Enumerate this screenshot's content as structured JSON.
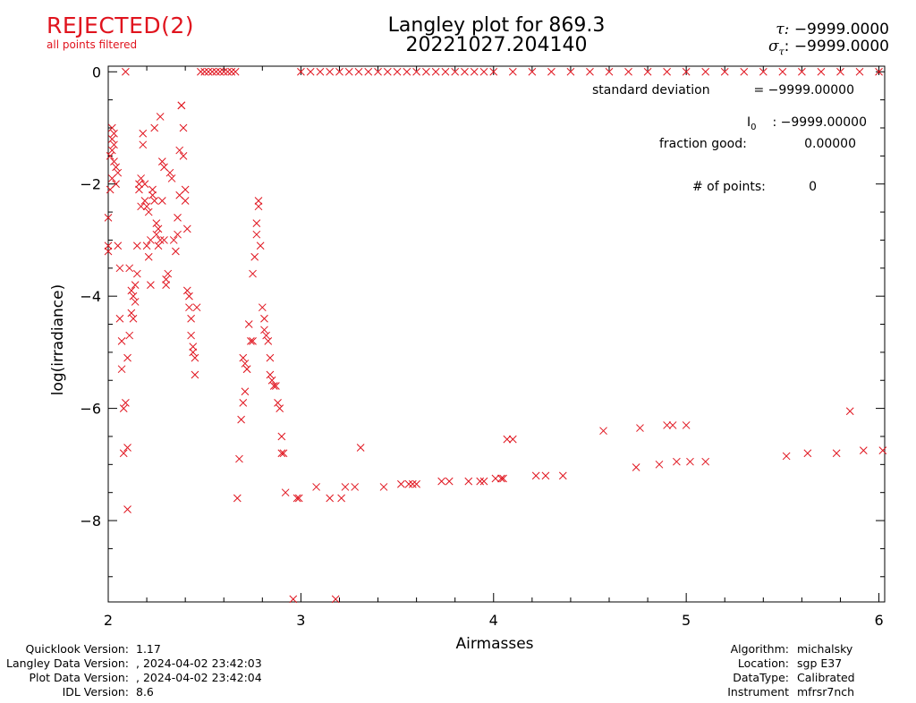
{
  "header": {
    "status": "REJECTED(2)",
    "status_sub": "all points filtered",
    "title_line1": "Langley plot for 869.3",
    "title_line2": "20221027.204140",
    "tau_label": "τ:",
    "tau_value": "−9999.0000",
    "sigma_label": "σ",
    "sigma_sub": "τ",
    "sigma_value": "−9999.0000",
    "colors": {
      "status": "#e0141e",
      "points": "#e0141e"
    }
  },
  "stats": {
    "std_dev_label": "standard deviation",
    "std_dev_value": "= −9999.00000",
    "i0_label": "I",
    "i0_sub": "0",
    "i0_value": ":  −9999.00000",
    "fraction_label": "fraction good:",
    "fraction_value": "0.00000",
    "npoints_label": "# of points:",
    "npoints_value": "0"
  },
  "footer": {
    "left": [
      {
        "label": "Quicklook Version:",
        "value": "1.17"
      },
      {
        "label": "Langley Data Version:",
        "value": ", 2024-04-02 23:42:03"
      },
      {
        "label": "Plot Data Version:",
        "value": ", 2024-04-02 23:42:04"
      },
      {
        "label": "IDL Version:",
        "value": "8.6"
      }
    ],
    "right": [
      {
        "label": "Algorithm:",
        "value": "michalsky"
      },
      {
        "label": "Location:",
        "value": "sgp E37"
      },
      {
        "label": "DataType:",
        "value": "Calibrated"
      },
      {
        "label": "Instrument",
        "value": "mfrsr7nch"
      }
    ]
  },
  "chart_data": {
    "type": "scatter",
    "xlabel": "Airmasses",
    "ylabel": "log(irradiance)",
    "xlim": [
      2.0,
      6.03
    ],
    "ylim": [
      -9.45,
      0.1
    ],
    "xticks": [
      2,
      3,
      4,
      5,
      6
    ],
    "yticks": [
      0,
      -2,
      -4,
      -6,
      -8
    ],
    "xtick_labels": [
      "2",
      "3",
      "4",
      "5",
      "6"
    ],
    "ytick_labels": [
      "0",
      "−2",
      "−4",
      "−6",
      "−8"
    ],
    "grid": false,
    "marker": "x",
    "series": [
      {
        "points": [
          [
            2.0,
            -2.6
          ],
          [
            2.0,
            -3.1
          ],
          [
            2.0,
            -3.2
          ],
          [
            2.01,
            -1.5
          ],
          [
            2.01,
            -2.1
          ],
          [
            2.02,
            -1.0
          ],
          [
            2.02,
            -1.4
          ],
          [
            2.02,
            -1.2
          ],
          [
            2.02,
            -1.9
          ],
          [
            2.03,
            -1.1
          ],
          [
            2.03,
            -1.3
          ],
          [
            2.03,
            -1.6
          ],
          [
            2.04,
            -1.7
          ],
          [
            2.04,
            -2.0
          ],
          [
            2.05,
            -3.1
          ],
          [
            2.05,
            -1.8
          ],
          [
            2.06,
            -3.5
          ],
          [
            2.06,
            -4.4
          ],
          [
            2.07,
            -4.8
          ],
          [
            2.07,
            -5.3
          ],
          [
            2.08,
            -6.0
          ],
          [
            2.08,
            -6.8
          ],
          [
            2.09,
            0.0
          ],
          [
            2.09,
            -5.9
          ],
          [
            2.1,
            -6.7
          ],
          [
            2.1,
            -7.8
          ],
          [
            2.1,
            -5.1
          ],
          [
            2.11,
            -4.7
          ],
          [
            2.11,
            -3.5
          ],
          [
            2.12,
            -3.9
          ],
          [
            2.12,
            -4.3
          ],
          [
            2.13,
            -4.4
          ],
          [
            2.13,
            -4.0
          ],
          [
            2.14,
            -3.8
          ],
          [
            2.14,
            -4.1
          ],
          [
            2.15,
            -3.6
          ],
          [
            2.15,
            -3.1
          ],
          [
            2.16,
            -2.0
          ],
          [
            2.16,
            -2.1
          ],
          [
            2.17,
            -1.9
          ],
          [
            2.17,
            -2.4
          ],
          [
            2.18,
            -1.3
          ],
          [
            2.18,
            -1.1
          ],
          [
            2.19,
            -2.3
          ],
          [
            2.19,
            -2.0
          ],
          [
            2.2,
            -2.4
          ],
          [
            2.2,
            -3.1
          ],
          [
            2.21,
            -3.3
          ],
          [
            2.21,
            -2.5
          ],
          [
            2.22,
            -3.8
          ],
          [
            2.22,
            -3.0
          ],
          [
            2.23,
            -2.2
          ],
          [
            2.23,
            -2.1
          ],
          [
            2.24,
            -1.0
          ],
          [
            2.24,
            -2.3
          ],
          [
            2.25,
            -2.7
          ],
          [
            2.25,
            -2.9
          ],
          [
            2.26,
            -2.8
          ],
          [
            2.26,
            -3.1
          ],
          [
            2.27,
            -0.8
          ],
          [
            2.27,
            -3.0
          ],
          [
            2.28,
            -2.3
          ],
          [
            2.28,
            -1.6
          ],
          [
            2.29,
            -1.7
          ],
          [
            2.29,
            -3.0
          ],
          [
            2.3,
            -3.7
          ],
          [
            2.3,
            -3.8
          ],
          [
            2.31,
            -3.6
          ],
          [
            2.32,
            -1.8
          ],
          [
            2.33,
            -1.9
          ],
          [
            2.34,
            -3.0
          ],
          [
            2.35,
            -3.2
          ],
          [
            2.36,
            -2.9
          ],
          [
            2.36,
            -2.6
          ],
          [
            2.37,
            -2.2
          ],
          [
            2.37,
            -1.4
          ],
          [
            2.38,
            -0.6
          ],
          [
            2.38,
            -0.6
          ],
          [
            2.39,
            -1.0
          ],
          [
            2.39,
            -1.5
          ],
          [
            2.4,
            -2.1
          ],
          [
            2.4,
            -2.3
          ],
          [
            2.41,
            -2.8
          ],
          [
            2.41,
            -3.9
          ],
          [
            2.42,
            -4.0
          ],
          [
            2.42,
            -4.2
          ],
          [
            2.43,
            -4.4
          ],
          [
            2.43,
            -4.7
          ],
          [
            2.44,
            -4.9
          ],
          [
            2.44,
            -5.0
          ],
          [
            2.45,
            -5.1
          ],
          [
            2.45,
            -5.4
          ],
          [
            2.46,
            -4.2
          ],
          [
            2.48,
            0.0
          ],
          [
            2.5,
            0.0
          ],
          [
            2.52,
            0.0
          ],
          [
            2.54,
            0.0
          ],
          [
            2.56,
            0.0
          ],
          [
            2.58,
            0.0
          ],
          [
            2.6,
            0.0
          ],
          [
            2.62,
            0.0
          ],
          [
            2.64,
            0.0
          ],
          [
            2.66,
            0.0
          ],
          [
            2.67,
            -7.6
          ],
          [
            2.68,
            -6.9
          ],
          [
            2.69,
            -6.2
          ],
          [
            2.7,
            -5.9
          ],
          [
            2.7,
            -5.1
          ],
          [
            2.71,
            -5.7
          ],
          [
            2.71,
            -5.2
          ],
          [
            2.72,
            -5.3
          ],
          [
            2.72,
            -5.3
          ],
          [
            2.73,
            -4.5
          ],
          [
            2.74,
            -4.8
          ],
          [
            2.75,
            -4.8
          ],
          [
            2.75,
            -3.6
          ],
          [
            2.76,
            -3.3
          ],
          [
            2.77,
            -2.9
          ],
          [
            2.77,
            -2.7
          ],
          [
            2.78,
            -2.4
          ],
          [
            2.78,
            -2.3
          ],
          [
            2.79,
            -3.1
          ],
          [
            2.8,
            -4.2
          ],
          [
            2.81,
            -4.4
          ],
          [
            2.81,
            -4.6
          ],
          [
            2.82,
            -4.7
          ],
          [
            2.83,
            -4.8
          ],
          [
            2.84,
            -5.1
          ],
          [
            2.84,
            -5.4
          ],
          [
            2.85,
            -5.5
          ],
          [
            2.86,
            -5.6
          ],
          [
            2.87,
            -5.6
          ],
          [
            2.88,
            -5.9
          ],
          [
            2.89,
            -6.0
          ],
          [
            2.9,
            -6.5
          ],
          [
            2.9,
            -6.8
          ],
          [
            2.91,
            -6.8
          ],
          [
            2.92,
            -7.5
          ],
          [
            2.96,
            -9.4
          ],
          [
            2.98,
            -7.6
          ],
          [
            2.99,
            -7.6
          ],
          [
            3.08,
            -7.4
          ],
          [
            3.15,
            -7.6
          ],
          [
            3.18,
            -9.4
          ],
          [
            3.21,
            -7.6
          ],
          [
            3.23,
            -7.4
          ],
          [
            3.28,
            -7.4
          ],
          [
            3.31,
            -6.7
          ],
          [
            3.43,
            -7.4
          ],
          [
            3.52,
            -7.35
          ],
          [
            3.56,
            -7.35
          ],
          [
            3.58,
            -7.35
          ],
          [
            3.6,
            -7.35
          ],
          [
            3.73,
            -7.3
          ],
          [
            3.77,
            -7.3
          ],
          [
            3.87,
            -7.3
          ],
          [
            3.93,
            -7.3
          ],
          [
            3.95,
            -7.3
          ],
          [
            4.01,
            -7.25
          ],
          [
            4.04,
            -7.25
          ],
          [
            4.05,
            -7.25
          ],
          [
            4.07,
            -6.55
          ],
          [
            4.1,
            -6.55
          ],
          [
            4.22,
            -7.2
          ],
          [
            4.27,
            -7.2
          ],
          [
            4.36,
            -7.2
          ],
          [
            4.57,
            -6.4
          ],
          [
            4.74,
            -7.05
          ],
          [
            4.76,
            -6.35
          ],
          [
            4.86,
            -7.0
          ],
          [
            4.9,
            -6.3
          ],
          [
            4.93,
            -6.3
          ],
          [
            4.95,
            -6.95
          ],
          [
            5.0,
            -6.3
          ],
          [
            5.02,
            -6.95
          ],
          [
            5.1,
            -6.95
          ],
          [
            5.52,
            -6.85
          ],
          [
            5.63,
            -6.8
          ],
          [
            5.78,
            -6.8
          ],
          [
            5.85,
            -6.05
          ],
          [
            5.92,
            -6.75
          ],
          [
            6.02,
            -6.75
          ],
          [
            3.0,
            0.0
          ],
          [
            3.05,
            0.0
          ],
          [
            3.1,
            0.0
          ],
          [
            3.15,
            0.0
          ],
          [
            3.2,
            0.0
          ],
          [
            3.25,
            0.0
          ],
          [
            3.3,
            0.0
          ],
          [
            3.35,
            0.0
          ],
          [
            3.4,
            0.0
          ],
          [
            3.45,
            0.0
          ],
          [
            3.5,
            0.0
          ],
          [
            3.55,
            0.0
          ],
          [
            3.6,
            0.0
          ],
          [
            3.65,
            0.0
          ],
          [
            3.7,
            0.0
          ],
          [
            3.75,
            0.0
          ],
          [
            3.8,
            0.0
          ],
          [
            3.85,
            0.0
          ],
          [
            3.9,
            0.0
          ],
          [
            3.95,
            0.0
          ],
          [
            4.0,
            0.0
          ],
          [
            4.1,
            0.0
          ],
          [
            4.2,
            0.0
          ],
          [
            4.3,
            0.0
          ],
          [
            4.4,
            0.0
          ],
          [
            4.5,
            0.0
          ],
          [
            4.6,
            0.0
          ],
          [
            4.7,
            0.0
          ],
          [
            4.8,
            0.0
          ],
          [
            4.9,
            0.0
          ],
          [
            5.0,
            0.0
          ],
          [
            5.1,
            0.0
          ],
          [
            5.2,
            0.0
          ],
          [
            5.3,
            0.0
          ],
          [
            5.4,
            0.0
          ],
          [
            5.5,
            0.0
          ],
          [
            5.6,
            0.0
          ],
          [
            5.7,
            0.0
          ],
          [
            5.8,
            0.0
          ],
          [
            5.9,
            0.0
          ],
          [
            6.0,
            0.0
          ]
        ]
      }
    ]
  }
}
